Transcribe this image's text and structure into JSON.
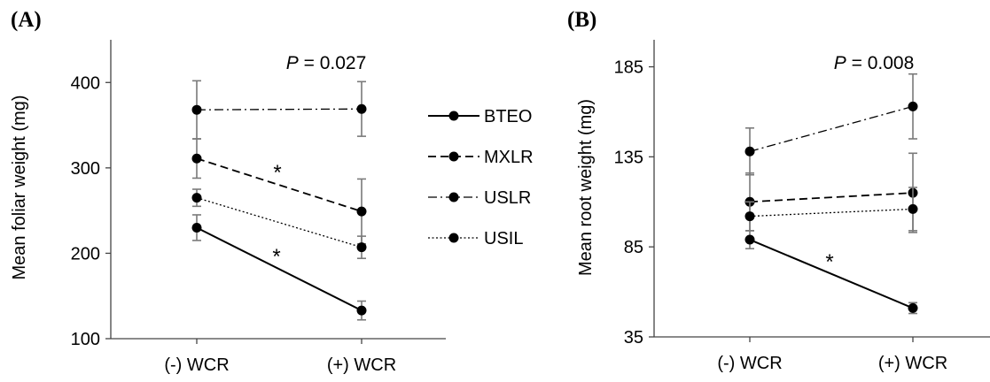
{
  "chart_data": [
    {
      "panel_label": "(A)",
      "type": "line",
      "ylabel": "Mean foliar weight (mg)",
      "yticks": [
        100,
        200,
        300,
        400
      ],
      "ylim": [
        100,
        450
      ],
      "categories": [
        "(-) WCR",
        "(+) WCR"
      ],
      "annotation": {
        "p_symbol": "P",
        "p_text": " = 0.027"
      },
      "significance_marks": [
        {
          "text": "*",
          "series": "MXLR"
        },
        {
          "text": "*",
          "series": "BTEO"
        }
      ],
      "series": [
        {
          "name": "BTEO",
          "style": "solid",
          "values": [
            230,
            133
          ],
          "errors": [
            15,
            11
          ]
        },
        {
          "name": "MXLR",
          "style": "dashed",
          "values": [
            311,
            249
          ],
          "errors": [
            23,
            38
          ]
        },
        {
          "name": "USLR",
          "style": "dashdot",
          "values": [
            368,
            369
          ],
          "errors": [
            34,
            32
          ]
        },
        {
          "name": "USIL",
          "style": "dotted",
          "values": [
            265,
            207
          ],
          "errors": [
            10,
            13
          ]
        }
      ],
      "legend": {
        "placement": "right",
        "entries": [
          "BTEO",
          "MXLR",
          "USLR",
          "USIL"
        ]
      },
      "grid": false
    },
    {
      "panel_label": "(B)",
      "type": "line",
      "ylabel": "Mean root weight (mg)",
      "yticks": [
        35,
        85,
        135,
        185
      ],
      "ylim": [
        35,
        200
      ],
      "categories": [
        "(-) WCR",
        "(+) WCR"
      ],
      "annotation": {
        "p_symbol": "P",
        "p_text": " = 0.008"
      },
      "significance_marks": [
        {
          "text": "*",
          "series": "BTEO"
        }
      ],
      "series": [
        {
          "name": "BTEO",
          "style": "solid",
          "values": [
            89,
            51
          ],
          "errors": [
            5,
            3
          ]
        },
        {
          "name": "MXLR",
          "style": "dashed",
          "values": [
            110,
            115
          ],
          "errors": [
            16,
            22
          ]
        },
        {
          "name": "USLR",
          "style": "dashdot",
          "values": [
            138,
            163
          ],
          "errors": [
            13,
            18
          ]
        },
        {
          "name": "USIL",
          "style": "dotted",
          "values": [
            102,
            106
          ],
          "errors": [
            8,
            12
          ]
        }
      ],
      "grid": false
    }
  ]
}
